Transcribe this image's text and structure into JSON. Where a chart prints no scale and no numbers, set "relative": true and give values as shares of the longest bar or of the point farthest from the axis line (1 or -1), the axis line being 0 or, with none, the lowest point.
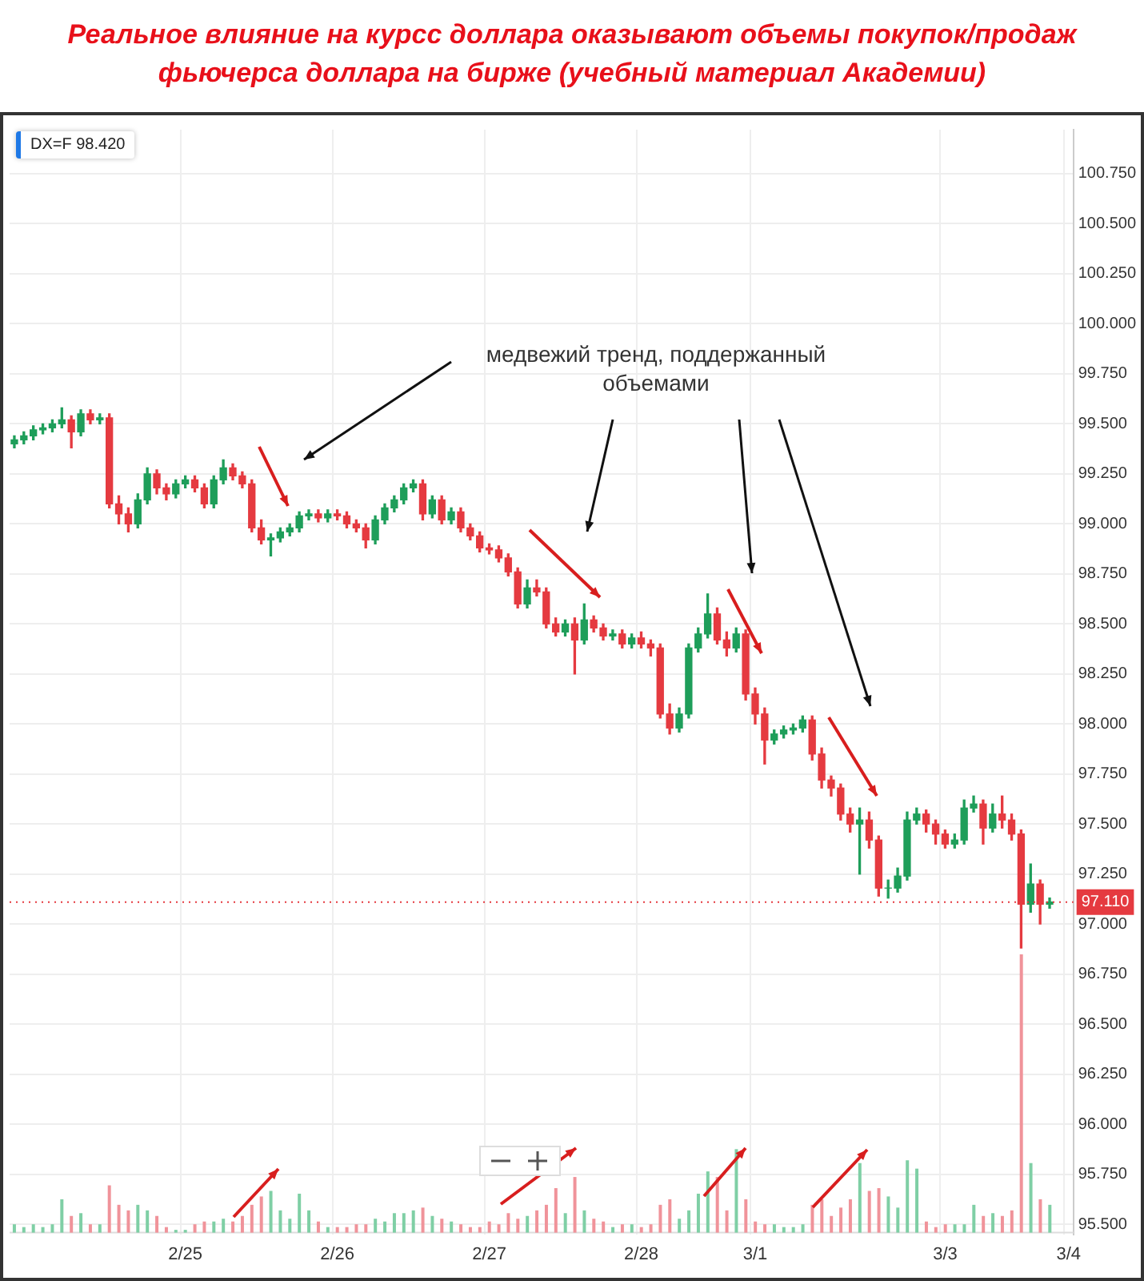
{
  "chart_data": [
    {
      "type": "candlestick",
      "title": "Реальное влияние на курсс доллара оказывают объемы покупок/продаж фьючерса доллара на бирже (учебный материал Академии)",
      "categories": [
        null,
        null,
        null,
        null,
        null,
        null,
        null,
        null,
        null,
        null,
        null,
        null,
        null,
        null,
        null,
        null,
        null,
        null,
        "2/25",
        null,
        null,
        null,
        null,
        null,
        null,
        null,
        null,
        null,
        null,
        null,
        null,
        null,
        null,
        null,
        "2/26",
        null,
        null,
        null,
        null,
        null,
        null,
        null,
        null,
        null,
        null,
        null,
        null,
        null,
        null,
        null,
        "2/27",
        null,
        null,
        null,
        null,
        null,
        null,
        null,
        null,
        null,
        null,
        null,
        null,
        null,
        null,
        null,
        "2/28",
        null,
        null,
        null,
        null,
        null,
        null,
        null,
        null,
        null,
        null,
        null,
        "3/1",
        null,
        null,
        null,
        null,
        null,
        null,
        null,
        null,
        null,
        null,
        null,
        null,
        null,
        null,
        null,
        null,
        null,
        null,
        null,
        "3/3",
        null,
        null,
        null,
        null,
        null,
        null,
        null,
        null,
        null,
        null,
        null,
        null,
        "3/4"
      ],
      "ohlc": [
        [
          99.4,
          99.44,
          99.38,
          99.42
        ],
        [
          99.42,
          99.46,
          99.4,
          99.44
        ],
        [
          99.44,
          99.49,
          99.42,
          99.47
        ],
        [
          99.47,
          99.5,
          99.45,
          99.48
        ],
        [
          99.48,
          99.52,
          99.46,
          99.5
        ],
        [
          99.5,
          99.58,
          99.48,
          99.52
        ],
        [
          99.52,
          99.54,
          99.38,
          99.46
        ],
        [
          99.46,
          99.57,
          99.44,
          99.55
        ],
        [
          99.55,
          99.57,
          99.5,
          99.52
        ],
        [
          99.52,
          99.55,
          99.5,
          99.53
        ],
        [
          99.53,
          99.55,
          99.08,
          99.1
        ],
        [
          99.1,
          99.14,
          99.0,
          99.05
        ],
        [
          99.05,
          99.08,
          98.96,
          99.0
        ],
        [
          99.0,
          99.15,
          98.98,
          99.12
        ],
        [
          99.12,
          99.28,
          99.1,
          99.25
        ],
        [
          99.25,
          99.27,
          99.15,
          99.18
        ],
        [
          99.18,
          99.2,
          99.12,
          99.15
        ],
        [
          99.15,
          99.22,
          99.13,
          99.2
        ],
        [
          99.2,
          99.24,
          99.18,
          99.22
        ],
        [
          99.22,
          99.24,
          99.16,
          99.18
        ],
        [
          99.18,
          99.2,
          99.08,
          99.1
        ],
        [
          99.1,
          99.24,
          99.08,
          99.22
        ],
        [
          99.22,
          99.32,
          99.2,
          99.28
        ],
        [
          99.28,
          99.3,
          99.22,
          99.24
        ],
        [
          99.24,
          99.26,
          99.18,
          99.2
        ],
        [
          99.2,
          99.22,
          98.96,
          98.98
        ],
        [
          98.98,
          99.02,
          98.9,
          98.92
        ],
        [
          98.92,
          98.95,
          98.84,
          98.93
        ],
        [
          98.93,
          98.98,
          98.91,
          98.96
        ],
        [
          98.96,
          99.0,
          98.94,
          98.98
        ],
        [
          98.98,
          99.06,
          98.96,
          99.04
        ],
        [
          99.04,
          99.07,
          99.02,
          99.05
        ],
        [
          99.05,
          99.07,
          99.01,
          99.03
        ],
        [
          99.03,
          99.07,
          99.01,
          99.05
        ],
        [
          99.05,
          99.07,
          99.02,
          99.04
        ],
        [
          99.04,
          99.06,
          98.98,
          99.0
        ],
        [
          99.0,
          99.02,
          98.96,
          98.98
        ],
        [
          98.98,
          99.0,
          98.88,
          98.92
        ],
        [
          98.92,
          99.04,
          98.9,
          99.02
        ],
        [
          99.02,
          99.1,
          99.0,
          99.08
        ],
        [
          99.08,
          99.14,
          99.06,
          99.12
        ],
        [
          99.12,
          99.2,
          99.1,
          99.18
        ],
        [
          99.18,
          99.22,
          99.16,
          99.2
        ],
        [
          99.2,
          99.22,
          99.02,
          99.05
        ],
        [
          99.05,
          99.14,
          99.03,
          99.12
        ],
        [
          99.12,
          99.14,
          99.0,
          99.02
        ],
        [
          99.02,
          99.08,
          99.0,
          99.06
        ],
        [
          99.06,
          99.08,
          98.96,
          98.98
        ],
        [
          98.98,
          99.0,
          98.92,
          98.94
        ],
        [
          98.94,
          98.96,
          98.86,
          98.88
        ],
        [
          98.88,
          98.9,
          98.85,
          98.87
        ],
        [
          98.87,
          98.89,
          98.81,
          98.83
        ],
        [
          98.83,
          98.85,
          98.74,
          98.76
        ],
        [
          98.76,
          98.78,
          98.58,
          98.6
        ],
        [
          98.6,
          98.72,
          98.58,
          98.68
        ],
        [
          98.68,
          98.72,
          98.64,
          98.66
        ],
        [
          98.66,
          98.68,
          98.48,
          98.5
        ],
        [
          98.5,
          98.53,
          98.44,
          98.46
        ],
        [
          98.46,
          98.52,
          98.44,
          98.5
        ],
        [
          98.5,
          98.53,
          98.25,
          98.42
        ],
        [
          98.42,
          98.6,
          98.4,
          98.52
        ],
        [
          98.52,
          98.54,
          98.46,
          98.48
        ],
        [
          98.48,
          98.5,
          98.42,
          98.44
        ],
        [
          98.44,
          98.47,
          98.42,
          98.45
        ],
        [
          98.45,
          98.47,
          98.38,
          98.4
        ],
        [
          98.4,
          98.45,
          98.38,
          98.43
        ],
        [
          98.43,
          98.46,
          98.38,
          98.4
        ],
        [
          98.4,
          98.42,
          98.34,
          98.38
        ],
        [
          98.38,
          98.4,
          98.03,
          98.05
        ],
        [
          98.05,
          98.1,
          97.95,
          97.98
        ],
        [
          97.98,
          98.08,
          97.96,
          98.05
        ],
        [
          98.05,
          98.4,
          98.03,
          98.38
        ],
        [
          98.38,
          98.48,
          98.36,
          98.45
        ],
        [
          98.45,
          98.65,
          98.43,
          98.55
        ],
        [
          98.55,
          98.58,
          98.4,
          98.42
        ],
        [
          98.42,
          98.46,
          98.34,
          98.38
        ],
        [
          98.38,
          98.48,
          98.36,
          98.45
        ],
        [
          98.45,
          98.47,
          98.12,
          98.15
        ],
        [
          98.15,
          98.18,
          98.0,
          98.05
        ],
        [
          98.05,
          98.08,
          97.8,
          97.92
        ],
        [
          97.92,
          97.97,
          97.9,
          97.95
        ],
        [
          97.95,
          97.99,
          97.93,
          97.97
        ],
        [
          97.97,
          98.0,
          97.95,
          97.98
        ],
        [
          97.98,
          98.04,
          97.96,
          98.02
        ],
        [
          98.02,
          98.04,
          97.82,
          97.85
        ],
        [
          97.85,
          97.88,
          97.68,
          97.72
        ],
        [
          97.72,
          97.74,
          97.64,
          97.68
        ],
        [
          97.68,
          97.7,
          97.52,
          97.55
        ],
        [
          97.55,
          97.58,
          97.46,
          97.5
        ],
        [
          97.5,
          97.58,
          97.25,
          97.52
        ],
        [
          97.52,
          97.56,
          97.38,
          97.42
        ],
        [
          97.42,
          97.44,
          97.14,
          97.18
        ],
        [
          97.18,
          97.22,
          97.13,
          97.18
        ],
        [
          97.18,
          97.28,
          97.16,
          97.24
        ],
        [
          97.24,
          97.56,
          97.22,
          97.52
        ],
        [
          97.52,
          97.58,
          97.5,
          97.55
        ],
        [
          97.55,
          97.57,
          97.46,
          97.5
        ],
        [
          97.5,
          97.52,
          97.4,
          97.45
        ],
        [
          97.45,
          97.47,
          97.38,
          97.4
        ],
        [
          97.4,
          97.45,
          97.38,
          97.42
        ],
        [
          97.42,
          97.62,
          97.4,
          97.58
        ],
        [
          97.58,
          97.64,
          97.56,
          97.6
        ],
        [
          97.6,
          97.62,
          97.4,
          97.48
        ],
        [
          97.48,
          97.6,
          97.46,
          97.55
        ],
        [
          97.55,
          97.64,
          97.48,
          97.52
        ],
        [
          97.52,
          97.55,
          97.42,
          97.45
        ],
        [
          97.45,
          97.47,
          96.88,
          97.1
        ],
        [
          97.1,
          97.3,
          97.06,
          97.2
        ],
        [
          97.2,
          97.22,
          97.0,
          97.1
        ],
        [
          97.1,
          97.13,
          97.08,
          97.11
        ],
        null,
        null
      ],
      "colors": [
        "#1e9e5a",
        "#1e9e5a",
        "#1e9e5a",
        "#1e9e5a",
        "#1e9e5a",
        "#1e9e5a",
        "#e53a40",
        "#1e9e5a",
        "#e53a40",
        "#1e9e5a",
        "#e53a40",
        "#e53a40",
        "#e53a40",
        "#1e9e5a",
        "#1e9e5a",
        "#e53a40",
        "#e53a40",
        "#1e9e5a",
        "#1e9e5a",
        "#e53a40",
        "#e53a40",
        "#1e9e5a",
        "#1e9e5a",
        "#e53a40",
        "#e53a40",
        "#e53a40",
        "#e53a40",
        "#1e9e5a",
        "#1e9e5a",
        "#1e9e5a",
        "#1e9e5a",
        "#1e9e5a",
        "#e53a40",
        "#1e9e5a",
        "#e53a40",
        "#e53a40",
        "#e53a40",
        "#e53a40",
        "#1e9e5a",
        "#1e9e5a",
        "#1e9e5a",
        "#1e9e5a",
        "#1e9e5a",
        "#e53a40",
        "#1e9e5a",
        "#e53a40",
        "#1e9e5a",
        "#e53a40",
        "#e53a40",
        "#e53a40",
        "#e53a40",
        "#e53a40",
        "#e53a40",
        "#e53a40",
        "#1e9e5a",
        "#e53a40",
        "#e53a40",
        "#e53a40",
        "#1e9e5a",
        "#e53a40",
        "#1e9e5a",
        "#e53a40",
        "#e53a40",
        "#1e9e5a",
        "#e53a40",
        "#1e9e5a",
        "#e53a40",
        "#e53a40",
        "#e53a40",
        "#e53a40",
        "#1e9e5a",
        "#1e9e5a",
        "#1e9e5a",
        "#1e9e5a",
        "#e53a40",
        "#e53a40",
        "#1e9e5a",
        "#e53a40",
        "#e53a40",
        "#e53a40",
        "#1e9e5a",
        "#1e9e5a",
        "#1e9e5a",
        "#1e9e5a",
        "#e53a40",
        "#e53a40",
        "#e53a40",
        "#e53a40",
        "#e53a40",
        "#1e9e5a",
        "#e53a40",
        "#e53a40",
        "#1e9e5a",
        "#1e9e5a",
        "#1e9e5a",
        "#1e9e5a",
        "#e53a40",
        "#e53a40",
        "#e53a40",
        "#1e9e5a",
        "#1e9e5a",
        "#1e9e5a",
        "#e53a40",
        "#1e9e5a",
        "#e53a40",
        "#e53a40",
        "#e53a40",
        "#1e9e5a",
        "#e53a40",
        "#1e9e5a",
        null,
        null
      ],
      "ylim": [
        95.45,
        100.97
      ],
      "yticks": [
        {
          "value": 95.5,
          "label": "95.500"
        },
        {
          "value": 95.75,
          "label": "95.750"
        },
        {
          "value": 96,
          "label": "96.000"
        },
        {
          "value": 96.25,
          "label": "96.250"
        },
        {
          "value": 96.5,
          "label": "96.500"
        },
        {
          "value": 96.75,
          "label": "96.750"
        },
        {
          "value": 97,
          "label": "97.000"
        },
        {
          "value": 97.25,
          "label": "97.250"
        },
        {
          "value": 97.5,
          "label": "97.500"
        },
        {
          "value": 97.75,
          "label": "97.750"
        },
        {
          "value": 98,
          "label": "98.000"
        },
        {
          "value": 98.25,
          "label": "98.250"
        },
        {
          "value": 98.5,
          "label": "98.500"
        },
        {
          "value": 98.75,
          "label": "98.750"
        },
        {
          "value": 99,
          "label": "99.000"
        },
        {
          "value": 99.25,
          "label": "99.250"
        },
        {
          "value": 99.5,
          "label": "99.500"
        },
        {
          "value": 99.75,
          "label": "99.750"
        },
        {
          "value": 100,
          "label": "100.000"
        },
        {
          "value": 100.25,
          "label": "100.250"
        },
        {
          "value": 100.5,
          "label": "100.500"
        },
        {
          "value": 100.75,
          "label": "100.750"
        }
      ],
      "ref_lines": [
        {
          "axis": "y",
          "value": 97.11,
          "label": "97.110",
          "color": "#e53a40",
          "line_style": "dotted"
        }
      ],
      "annotations": [
        "DX=F 98.420",
        "медвежий тренд, поддержанный объемами"
      ],
      "grid": true,
      "legend": false
    },
    {
      "type": "bar",
      "relative": true,
      "categories": [
        null,
        null,
        null,
        null,
        null,
        null,
        null,
        null,
        null,
        null,
        null,
        null,
        null,
        null,
        null,
        null,
        null,
        null,
        null,
        null,
        null,
        null,
        null,
        null,
        null,
        null,
        null,
        null,
        null,
        null,
        null,
        null,
        null,
        null,
        null,
        null,
        null,
        null,
        null,
        null,
        null,
        null,
        null,
        null,
        null,
        null,
        null,
        null,
        null,
        null,
        null,
        null,
        null,
        null,
        null,
        null,
        null,
        null,
        null,
        null,
        null,
        null,
        null,
        null,
        null,
        null,
        null,
        null,
        null,
        null,
        null,
        null,
        null,
        null,
        null,
        null,
        null,
        null,
        null,
        null,
        null,
        null,
        null,
        null,
        null,
        null,
        null,
        null,
        null,
        null,
        null,
        null,
        null,
        null,
        null,
        null,
        null,
        null,
        null,
        null,
        null,
        null,
        null,
        null,
        null,
        null,
        null,
        null,
        null,
        null,
        null,
        null
      ],
      "values": [
        0.03,
        0.02,
        0.03,
        0.02,
        0.03,
        0.12,
        0.06,
        0.07,
        0.03,
        0.03,
        0.17,
        0.1,
        0.08,
        0.1,
        0.08,
        0.06,
        0.02,
        0.01,
        0.01,
        0.03,
        0.04,
        0.04,
        0.05,
        0.04,
        0.06,
        0.1,
        0.13,
        0.15,
        0.08,
        0.05,
        0.14,
        0.08,
        0.04,
        0.02,
        0.02,
        0.02,
        0.03,
        0.03,
        0.05,
        0.04,
        0.07,
        0.07,
        0.08,
        0.09,
        0.06,
        0.05,
        0.04,
        0.03,
        0.02,
        0.02,
        0.04,
        0.03,
        0.07,
        0.05,
        0.06,
        0.08,
        0.1,
        0.16,
        0.07,
        0.2,
        0.08,
        0.05,
        0.04,
        0.02,
        0.03,
        0.03,
        0.02,
        0.03,
        0.1,
        0.12,
        0.05,
        0.08,
        0.14,
        0.22,
        0.2,
        0.08,
        0.3,
        0.12,
        0.04,
        0.03,
        0.03,
        0.02,
        0.02,
        0.03,
        0.1,
        0.12,
        0.06,
        0.09,
        0.12,
        0.25,
        0.15,
        0.16,
        0.13,
        0.09,
        0.26,
        0.23,
        0.04,
        0.02,
        0.03,
        0.03,
        0.03,
        0.1,
        0.06,
        0.07,
        0.06,
        0.08,
        1,
        0.25,
        0.12,
        0.1,
        null,
        null
      ],
      "colors": [
        "#7fcfa5",
        "#7fcfa5",
        "#7fcfa5",
        "#7fcfa5",
        "#7fcfa5",
        "#7fcfa5",
        "#f0939a",
        "#7fcfa5",
        "#f0939a",
        "#7fcfa5",
        "#f0939a",
        "#f0939a",
        "#f0939a",
        "#7fcfa5",
        "#7fcfa5",
        "#f0939a",
        "#f0939a",
        "#7fcfa5",
        "#7fcfa5",
        "#f0939a",
        "#f0939a",
        "#7fcfa5",
        "#7fcfa5",
        "#f0939a",
        "#f0939a",
        "#f0939a",
        "#f0939a",
        "#7fcfa5",
        "#7fcfa5",
        "#7fcfa5",
        "#7fcfa5",
        "#7fcfa5",
        "#f0939a",
        "#7fcfa5",
        "#f0939a",
        "#f0939a",
        "#f0939a",
        "#f0939a",
        "#7fcfa5",
        "#7fcfa5",
        "#7fcfa5",
        "#7fcfa5",
        "#7fcfa5",
        "#f0939a",
        "#7fcfa5",
        "#f0939a",
        "#7fcfa5",
        "#f0939a",
        "#f0939a",
        "#f0939a",
        "#f0939a",
        "#f0939a",
        "#f0939a",
        "#f0939a",
        "#7fcfa5",
        "#f0939a",
        "#f0939a",
        "#f0939a",
        "#7fcfa5",
        "#f0939a",
        "#7fcfa5",
        "#f0939a",
        "#f0939a",
        "#7fcfa5",
        "#f0939a",
        "#7fcfa5",
        "#f0939a",
        "#f0939a",
        "#f0939a",
        "#f0939a",
        "#7fcfa5",
        "#7fcfa5",
        "#7fcfa5",
        "#7fcfa5",
        "#f0939a",
        "#f0939a",
        "#7fcfa5",
        "#f0939a",
        "#f0939a",
        "#f0939a",
        "#7fcfa5",
        "#7fcfa5",
        "#7fcfa5",
        "#7fcfa5",
        "#f0939a",
        "#f0939a",
        "#f0939a",
        "#f0939a",
        "#f0939a",
        "#7fcfa5",
        "#f0939a",
        "#f0939a",
        "#7fcfa5",
        "#7fcfa5",
        "#7fcfa5",
        "#7fcfa5",
        "#f0939a",
        "#f0939a",
        "#f0939a",
        "#7fcfa5",
        "#7fcfa5",
        "#7fcfa5",
        "#f0939a",
        "#7fcfa5",
        "#f0939a",
        "#f0939a",
        "#f0939a",
        "#7fcfa5",
        "#f0939a",
        "#7fcfa5",
        null,
        null
      ]
    }
  ]
}
